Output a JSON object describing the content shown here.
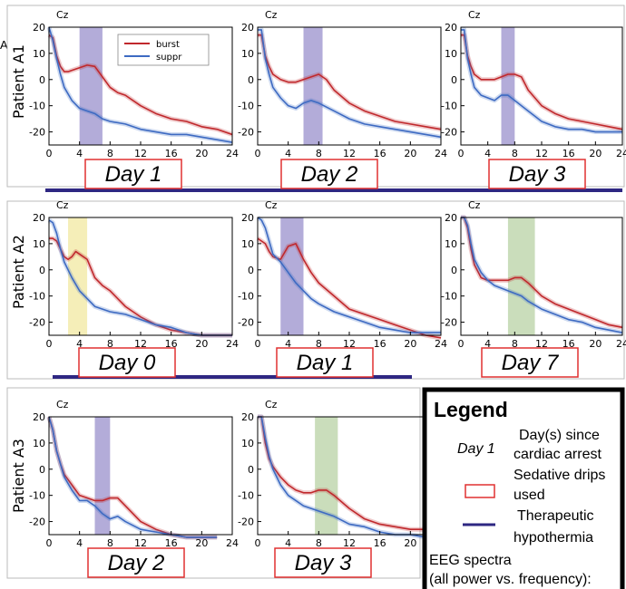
{
  "panel_letter": "A",
  "chart_data": [
    {
      "type": "line",
      "row": 0,
      "col": 0,
      "channel": "Cz",
      "day_label": "Day 1",
      "shade": [
        4,
        7
      ],
      "shade_color": "#9a90cc",
      "xlim": [
        0,
        24
      ],
      "ylim": [
        -25,
        20
      ],
      "xticks": [
        0,
        4,
        8,
        12,
        16,
        20,
        24
      ],
      "yticks": [
        20,
        10,
        0,
        -10,
        -20
      ],
      "ylabel": "Patient A1",
      "series": [
        {
          "name": "burst",
          "color": "#c0282c",
          "x": [
            0,
            0.5,
            1,
            1.5,
            2,
            2.5,
            3,
            4,
            5,
            6,
            7,
            8,
            9,
            10,
            12,
            14,
            16,
            18,
            20,
            22,
            24
          ],
          "y": [
            17,
            16,
            9,
            5,
            3,
            3,
            3.5,
            4.5,
            5.5,
            5,
            1,
            -3,
            -5,
            -6,
            -10,
            -13,
            -15,
            -16,
            -18,
            -19,
            -21
          ]
        },
        {
          "name": "suppr",
          "color": "#3d6ac2",
          "x": [
            0,
            0.5,
            1,
            1.5,
            2,
            3,
            4,
            5,
            6,
            7,
            8,
            10,
            12,
            14,
            16,
            18,
            20,
            22,
            24
          ],
          "y": [
            20,
            15,
            8,
            2,
            -3,
            -8,
            -11,
            -12,
            -13,
            -15,
            -16,
            -17,
            -19,
            -20,
            -21,
            -21,
            -22,
            -23,
            -24
          ]
        }
      ]
    },
    {
      "type": "line",
      "row": 0,
      "col": 1,
      "channel": "Cz",
      "day_label": "Day 2",
      "shade": [
        6,
        8.5
      ],
      "shade_color": "#9a90cc",
      "xlim": [
        0,
        24
      ],
      "ylim": [
        -25,
        20
      ],
      "xticks": [
        0,
        4,
        8,
        12,
        16,
        20,
        24
      ],
      "yticks": [
        20,
        10,
        0,
        -10,
        -20
      ],
      "series": [
        {
          "name": "burst",
          "color": "#c0282c",
          "x": [
            0,
            0.5,
            1,
            1.5,
            2,
            3,
            4,
            5,
            6,
            7,
            8,
            9,
            10,
            12,
            14,
            16,
            18,
            20,
            22,
            24
          ],
          "y": [
            17,
            17,
            9,
            5,
            2,
            0,
            -1,
            -1,
            0,
            1,
            2,
            0,
            -4,
            -9,
            -12,
            -14,
            -16,
            -17,
            -18,
            -19
          ]
        },
        {
          "name": "suppr",
          "color": "#3d6ac2",
          "x": [
            0,
            0.5,
            1,
            1.5,
            2,
            3,
            4,
            5,
            6,
            7,
            8,
            10,
            12,
            14,
            16,
            18,
            20,
            22,
            24
          ],
          "y": [
            19,
            19,
            8,
            2,
            -3,
            -7,
            -10,
            -11,
            -9,
            -8,
            -9,
            -12,
            -15,
            -17,
            -18,
            -19,
            -20,
            -21,
            -22
          ]
        }
      ]
    },
    {
      "type": "line",
      "row": 0,
      "col": 2,
      "channel": "Cz",
      "day_label": "Day 3",
      "shade": [
        6,
        8
      ],
      "shade_color": "#9a90cc",
      "xlim": [
        0,
        24
      ],
      "ylim": [
        -25,
        20
      ],
      "xticks": [
        0,
        4,
        8,
        12,
        16,
        20,
        24
      ],
      "yticks": [
        20,
        10,
        0,
        -10,
        -20
      ],
      "series": [
        {
          "name": "burst",
          "color": "#c0282c",
          "x": [
            0,
            0.5,
            1,
            1.5,
            2,
            3,
            4,
            5,
            6,
            7,
            8,
            9,
            10,
            12,
            14,
            16,
            18,
            20,
            22,
            24
          ],
          "y": [
            17,
            17,
            9,
            5,
            2,
            0,
            0,
            0,
            1,
            2,
            2,
            1,
            -4,
            -10,
            -13,
            -15,
            -16,
            -17,
            -18,
            -19
          ]
        },
        {
          "name": "suppr",
          "color": "#3d6ac2",
          "x": [
            0,
            0.5,
            1,
            1.5,
            2,
            3,
            4,
            5,
            6,
            7,
            8,
            10,
            12,
            14,
            16,
            18,
            20,
            22,
            24
          ],
          "y": [
            19,
            19,
            8,
            2,
            -3,
            -6,
            -7,
            -8,
            -6,
            -6,
            -8,
            -12,
            -16,
            -18,
            -19,
            -19,
            -20,
            -20,
            -20
          ]
        }
      ]
    },
    {
      "type": "line",
      "row": 1,
      "col": 0,
      "channel": "Cz",
      "day_label": "Day 0",
      "shade": [
        2.5,
        5
      ],
      "shade_color": "#f2e8a0",
      "xlim": [
        0,
        24
      ],
      "ylim": [
        -25,
        20
      ],
      "xticks": [
        0,
        4,
        8,
        12,
        16,
        20,
        24
      ],
      "yticks": [
        20,
        10,
        0,
        -10,
        -20
      ],
      "ylabel": "Patient A2",
      "series": [
        {
          "name": "burst",
          "color": "#c0282c",
          "x": [
            0,
            0.5,
            1,
            1.5,
            2,
            2.5,
            3,
            3.5,
            4,
            5,
            6,
            7,
            8,
            10,
            12,
            14,
            16,
            18,
            20,
            22,
            24
          ],
          "y": [
            12,
            12,
            11,
            8,
            5,
            4,
            5,
            7,
            6,
            4,
            -3,
            -6,
            -8,
            -14,
            -18,
            -21,
            -23,
            -24,
            -25,
            -25,
            -25
          ]
        },
        {
          "name": "suppr",
          "color": "#3d6ac2",
          "x": [
            0,
            0.5,
            1,
            1.5,
            2,
            3,
            4,
            5,
            6,
            7,
            8,
            10,
            12,
            14,
            16,
            18,
            20,
            22,
            24
          ],
          "y": [
            19,
            18,
            14,
            8,
            3,
            -3,
            -8,
            -11,
            -14,
            -15,
            -16,
            -17,
            -19,
            -21,
            -22,
            -24,
            -25,
            -25,
            -25
          ]
        }
      ]
    },
    {
      "type": "line",
      "row": 1,
      "col": 1,
      "channel": "Cz",
      "day_label": "Day 1",
      "shade": [
        3,
        6
      ],
      "shade_color": "#9a90cc",
      "xlim": [
        0,
        24
      ],
      "ylim": [
        -25,
        20
      ],
      "xticks": [
        0,
        4,
        8,
        12,
        16,
        20,
        24
      ],
      "yticks": [
        20,
        10,
        0,
        -10,
        -20
      ],
      "series": [
        {
          "name": "burst",
          "color": "#c0282c",
          "x": [
            0,
            0.5,
            1,
            1.5,
            2,
            3,
            4,
            5,
            6,
            7,
            8,
            10,
            12,
            14,
            16,
            18,
            20,
            22,
            24
          ],
          "y": [
            12,
            11,
            10,
            7,
            5,
            4,
            9,
            10,
            4,
            -1,
            -5,
            -10,
            -15,
            -17,
            -19,
            -21,
            -23,
            -25,
            -26
          ]
        },
        {
          "name": "suppr",
          "color": "#3d6ac2",
          "x": [
            0,
            0.5,
            1,
            1.5,
            2,
            3,
            4,
            5,
            6,
            7,
            8,
            10,
            12,
            14,
            16,
            18,
            20,
            22,
            24
          ],
          "y": [
            20,
            19,
            16,
            11,
            6,
            3,
            -1,
            -5,
            -8,
            -11,
            -13,
            -16,
            -18,
            -20,
            -22,
            -23,
            -24,
            -24,
            -24
          ]
        }
      ]
    },
    {
      "type": "line",
      "row": 1,
      "col": 2,
      "channel": "Cz",
      "day_label": "Day 7",
      "shade": [
        7,
        11
      ],
      "shade_color": "#b8d2a4",
      "xlim": [
        0,
        24
      ],
      "ylim": [
        -25,
        20
      ],
      "xticks": [
        0,
        4,
        8,
        12,
        16,
        20,
        24
      ],
      "yticks": [
        20,
        10,
        0,
        -10,
        -20
      ],
      "series": [
        {
          "name": "burst",
          "color": "#c0282c",
          "x": [
            0,
            0.5,
            1,
            1.5,
            2,
            3,
            4,
            5,
            6,
            7,
            8,
            9,
            10,
            12,
            14,
            16,
            18,
            20,
            22,
            24
          ],
          "y": [
            20,
            20,
            16,
            8,
            2,
            -3,
            -4,
            -4,
            -4,
            -4,
            -3,
            -3,
            -5,
            -10,
            -13,
            -15,
            -17,
            -19,
            -21,
            -22
          ]
        },
        {
          "name": "suppr",
          "color": "#3d6ac2",
          "x": [
            0,
            0.5,
            1,
            1.5,
            2,
            3,
            4,
            5,
            6,
            7,
            8,
            9,
            10,
            12,
            14,
            16,
            18,
            20,
            22,
            24
          ],
          "y": [
            20,
            20,
            17,
            10,
            4,
            -1,
            -4,
            -6,
            -7,
            -8,
            -9,
            -10,
            -12,
            -15,
            -17,
            -19,
            -20,
            -22,
            -23,
            -24
          ]
        }
      ]
    },
    {
      "type": "line",
      "row": 2,
      "col": 0,
      "channel": "Cz",
      "day_label": "Day 2",
      "shade": [
        6,
        8
      ],
      "shade_color": "#9a90cc",
      "xlim": [
        0,
        24
      ],
      "ylim": [
        -25,
        20
      ],
      "xticks": [
        0,
        4,
        8,
        12,
        16,
        20,
        24
      ],
      "yticks": [
        20,
        10,
        0,
        -10,
        -20
      ],
      "ylabel": "Patient A3",
      "series": [
        {
          "name": "burst",
          "color": "#c0282c",
          "x": [
            0,
            0.5,
            1,
            1.5,
            2,
            3,
            4,
            5,
            6,
            7,
            8,
            9,
            10,
            12,
            14,
            16,
            18,
            20,
            22
          ],
          "y": [
            20,
            15,
            7,
            2,
            -2,
            -6,
            -10,
            -11,
            -12,
            -12,
            -11,
            -11,
            -14,
            -20,
            -23,
            -25,
            -26,
            -26,
            -26
          ]
        },
        {
          "name": "suppr",
          "color": "#3d6ac2",
          "x": [
            0,
            0.5,
            1,
            1.5,
            2,
            3,
            4,
            5,
            6,
            7,
            8,
            9,
            10,
            12,
            14,
            16,
            18,
            20,
            22
          ],
          "y": [
            20,
            15,
            7,
            2,
            -3,
            -8,
            -12,
            -12,
            -14,
            -17,
            -19,
            -18,
            -20,
            -23,
            -24,
            -25,
            -26,
            -26,
            -26
          ]
        }
      ]
    },
    {
      "type": "line",
      "row": 2,
      "col": 1,
      "channel": "Cz",
      "day_label": "Day 3",
      "shade": [
        7.5,
        10.5
      ],
      "shade_color": "#b8d2a4",
      "xlim": [
        0,
        24
      ],
      "ylim": [
        -25,
        20
      ],
      "xticks": [
        0,
        4,
        8,
        12,
        16,
        20,
        24
      ],
      "yticks": [
        20,
        10,
        0,
        -10,
        -20
      ],
      "series": [
        {
          "name": "burst",
          "color": "#c0282c",
          "x": [
            0,
            0.5,
            1,
            1.5,
            2,
            3,
            4,
            5,
            6,
            7,
            8,
            9,
            10,
            12,
            14,
            16,
            18,
            20,
            22,
            24
          ],
          "y": [
            20,
            20,
            10,
            4,
            1,
            -3,
            -6,
            -8,
            -9,
            -9,
            -8,
            -8,
            -10,
            -15,
            -19,
            -21,
            -22,
            -23,
            -23,
            -24
          ]
        },
        {
          "name": "suppr",
          "color": "#3d6ac2",
          "x": [
            0,
            0.5,
            1,
            1.5,
            2,
            3,
            4,
            5,
            6,
            7,
            8,
            9,
            10,
            12,
            14,
            16,
            18,
            20,
            22,
            24
          ],
          "y": [
            20,
            20,
            12,
            5,
            0,
            -6,
            -10,
            -12,
            -14,
            -15,
            -16,
            -17,
            -18,
            -21,
            -22,
            -24,
            -25,
            -25,
            -26,
            -26
          ]
        }
      ]
    }
  ],
  "inline_legend": {
    "burst": "burst",
    "suppr": "suppr"
  },
  "legend": {
    "title": "Legend",
    "day_example": "Day 1",
    "day_desc_1": "Day(s) since",
    "day_desc_2": "cardiac arrest",
    "sedative_1": "Sedative drips",
    "sedative_2": "used",
    "hypo_1": "Therapeutic",
    "hypo_2": "hypothermia",
    "eeg_1": "EEG spectra",
    "eeg_2": "(all power vs. frequency):"
  }
}
